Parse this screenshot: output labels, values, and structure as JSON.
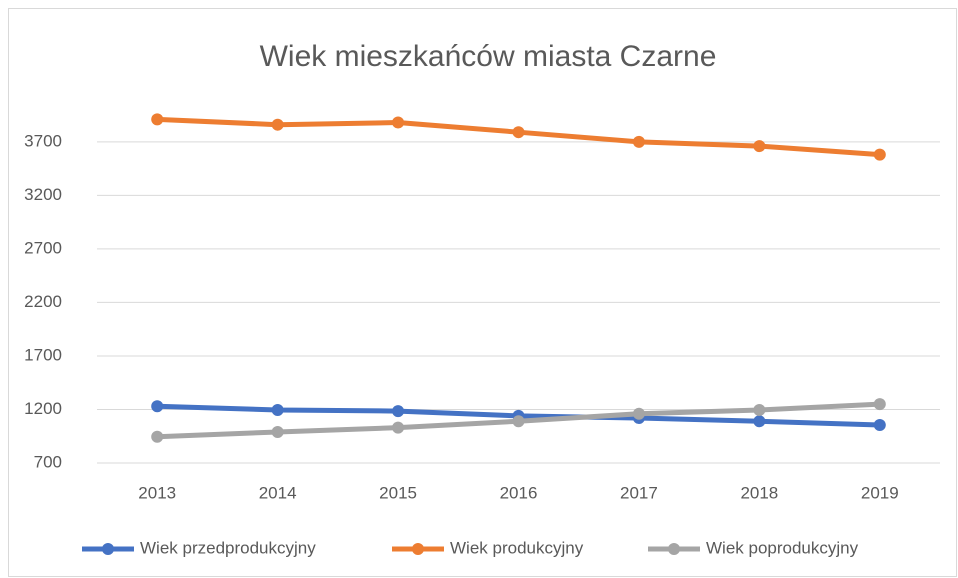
{
  "chart_data": {
    "type": "line",
    "title": "Wiek mieszkańców miasta Czarne",
    "categories": [
      "2013",
      "2014",
      "2015",
      "2016",
      "2017",
      "2018",
      "2019"
    ],
    "series": [
      {
        "name": "Wiek przedprodukcyjny",
        "color": "#4472c4",
        "values": [
          1230,
          1195,
          1185,
          1140,
          1120,
          1090,
          1055
        ]
      },
      {
        "name": "Wiek produkcyjny",
        "color": "#ed7d31",
        "values": [
          3910,
          3860,
          3880,
          3790,
          3700,
          3660,
          3580
        ]
      },
      {
        "name": "Wiek poprodukcyjny",
        "color": "#a5a5a5",
        "values": [
          945,
          990,
          1030,
          1090,
          1160,
          1195,
          1250
        ]
      }
    ],
    "ylim": [
      700,
      4100
    ],
    "yticks": [
      700,
      1200,
      1700,
      2200,
      2700,
      3200,
      3700
    ],
    "grid": true,
    "legend": "bottom"
  }
}
